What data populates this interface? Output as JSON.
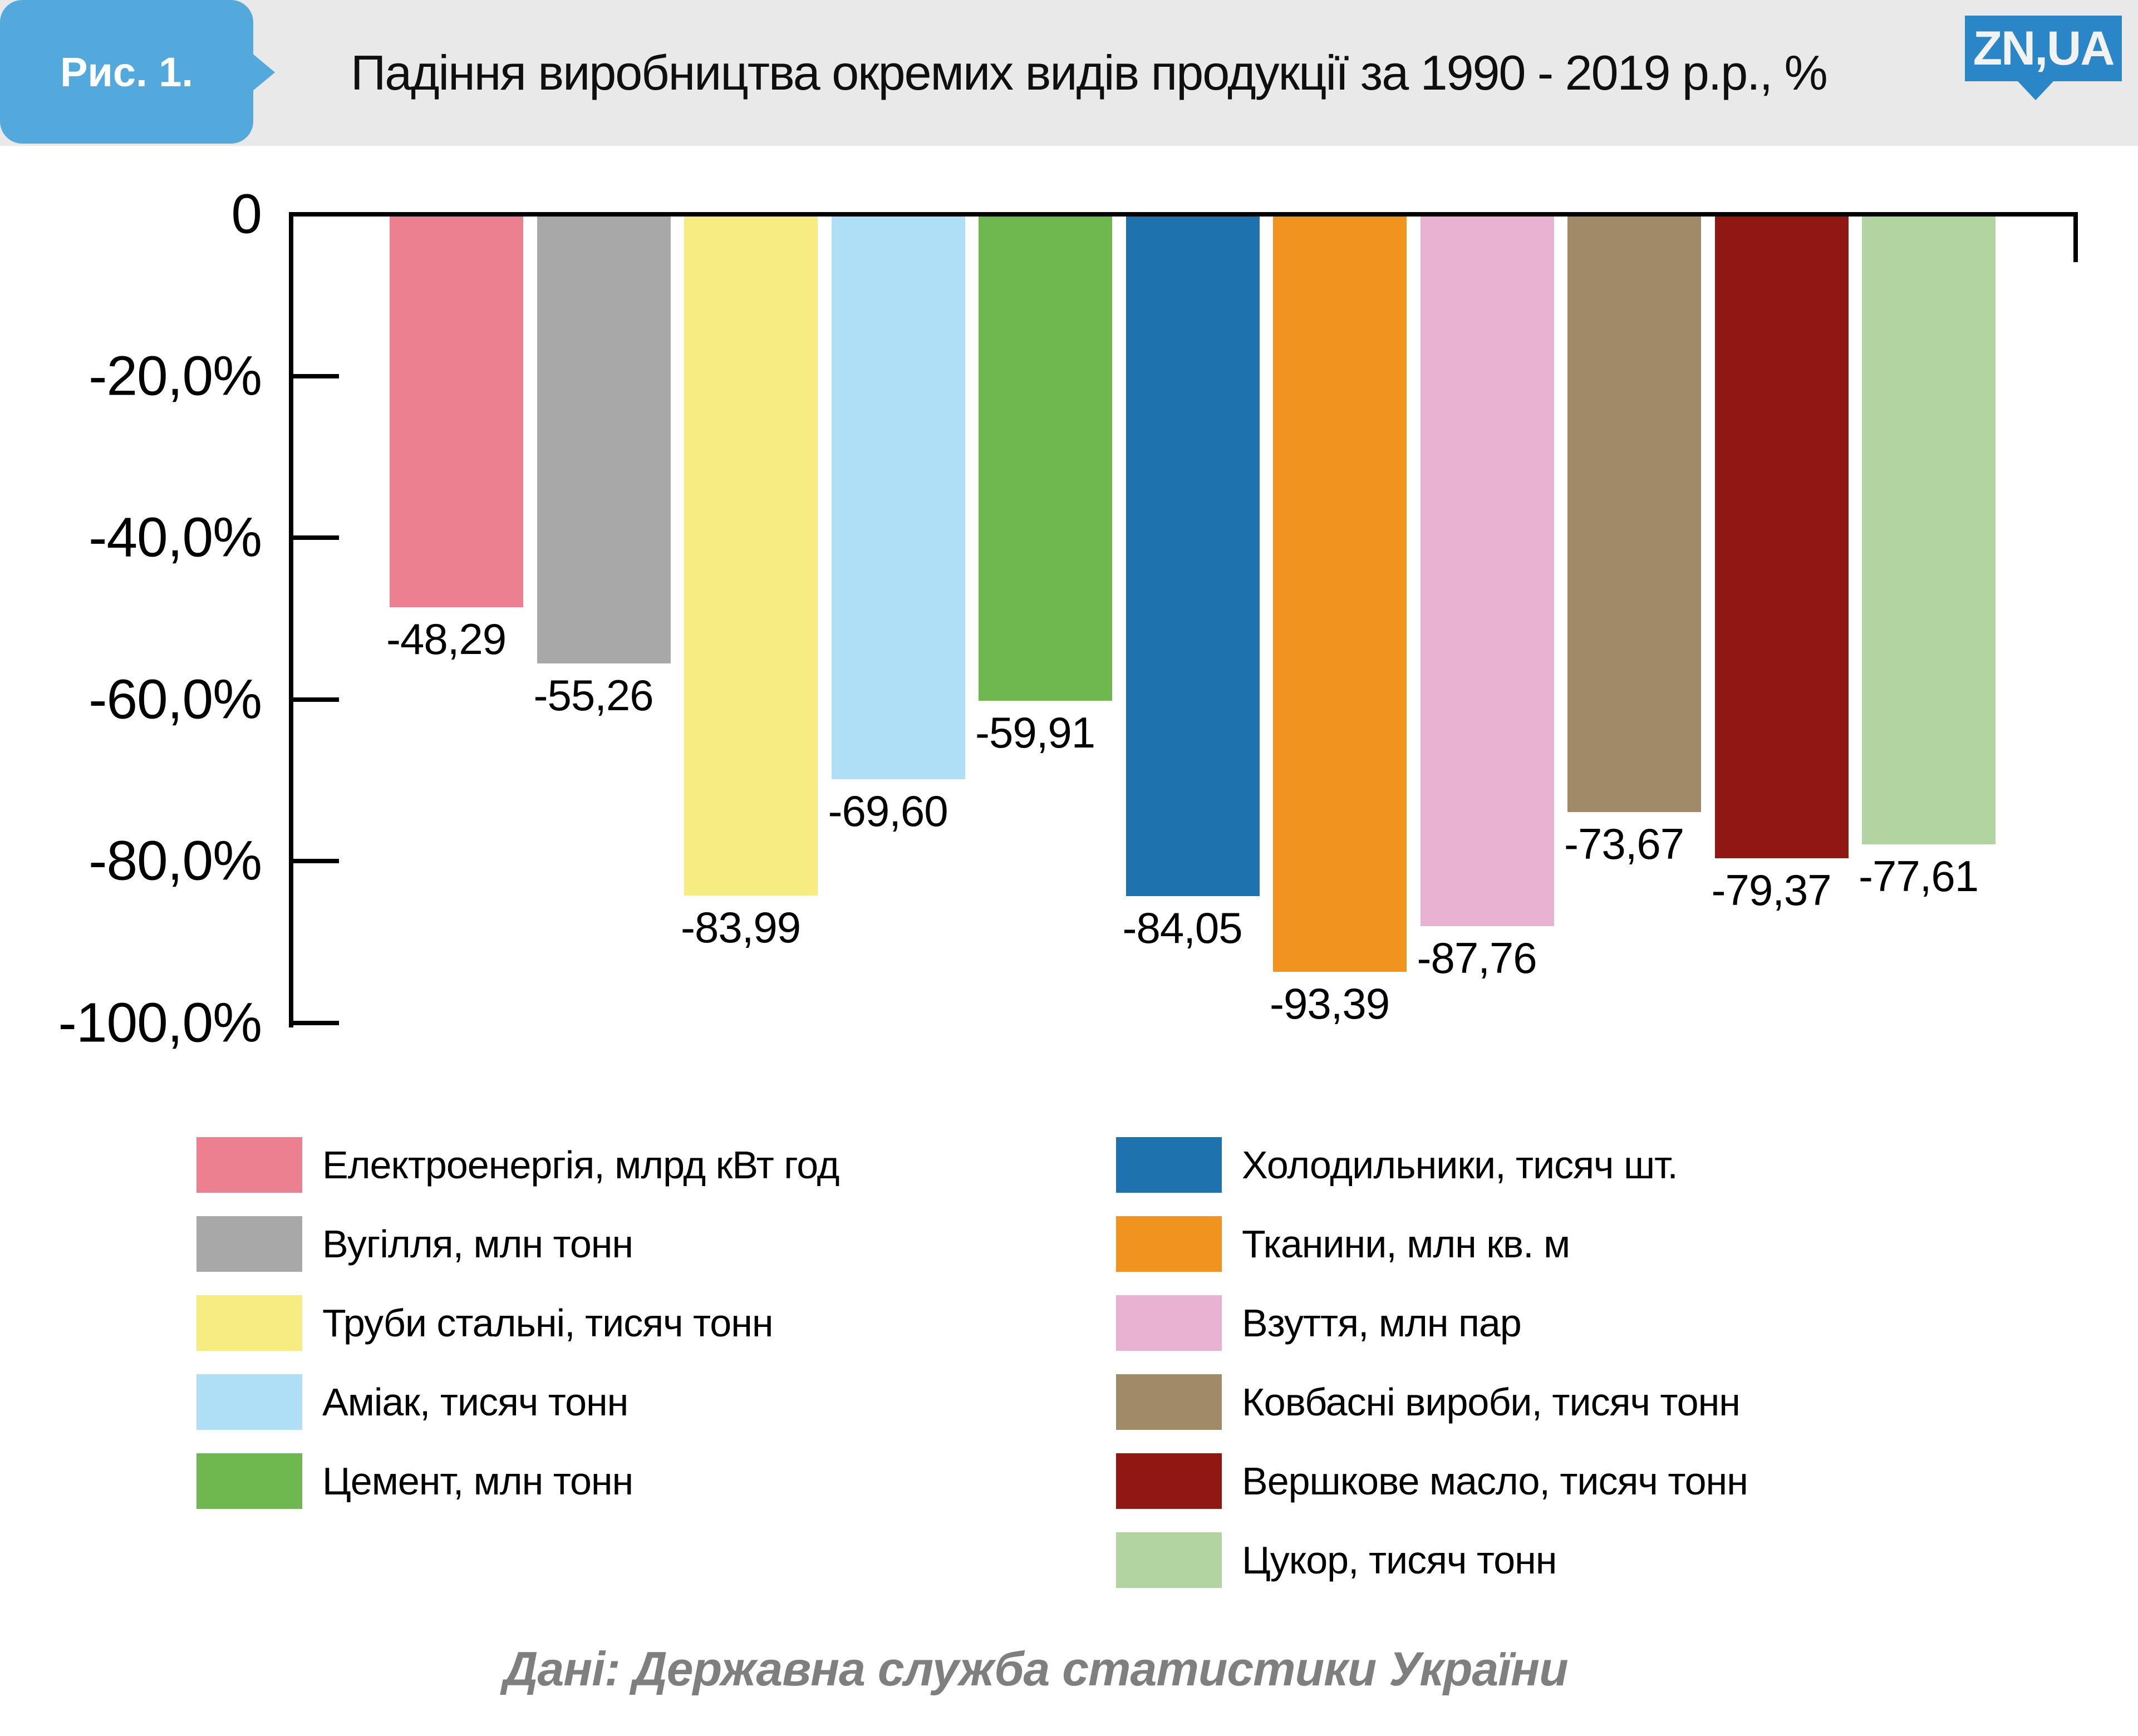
{
  "header": {
    "figure_label": "Рис. 1.",
    "title": "Падіння виробництва окремих видів продукції за 1990 - 2019 р.р., %",
    "logo_text": "ZN,UA",
    "badge_color": "#54a9dc",
    "logo_color": "#2a86c7",
    "background_color": "#e9e9e9"
  },
  "footer": {
    "text": "Дані: Державна служба статистики України",
    "color": "#7f7f7f"
  },
  "chart_data": {
    "type": "bar",
    "title": "Падіння виробництва окремих видів продукції за 1990 - 2019 р.р., %",
    "xlabel": "",
    "ylabel": "",
    "ylim": [
      0,
      -100
    ],
    "grid": false,
    "legend_position": "bottom-two-columns",
    "yticks": [
      {
        "value": 0,
        "label": "0"
      },
      {
        "value": -20,
        "label": "-20,0%"
      },
      {
        "value": -40,
        "label": "-40,0%"
      },
      {
        "value": -60,
        "label": "-60,0%"
      },
      {
        "value": -80,
        "label": "-80,0%"
      },
      {
        "value": -100,
        "label": "-100,0%"
      }
    ],
    "series": [
      {
        "label": "Електроенергія, млрд кВт год",
        "value": -48.29,
        "value_label": "-48,29",
        "color": "#ed8090"
      },
      {
        "label": "Вугілля, млн тонн",
        "value": -55.26,
        "value_label": "-55,26",
        "color": "#a8a8a8"
      },
      {
        "label": "Труби стальні, тисяч тонн",
        "value": -83.99,
        "value_label": "-83,99",
        "color": "#f7ec82"
      },
      {
        "label": "Аміак, тисяч тонн",
        "value": -69.6,
        "value_label": "-69,60",
        "color": "#aedff7"
      },
      {
        "label": "Цемент, млн тонн",
        "value": -59.91,
        "value_label": "-59,91",
        "color": "#6fb84f"
      },
      {
        "label": "Холодильники, тисяч шт.",
        "value": -84.05,
        "value_label": "-84,05",
        "color": "#1e72ae"
      },
      {
        "label": "Тканини, млн кв. м",
        "value": -93.39,
        "value_label": "-93,39",
        "color": "#f0941f"
      },
      {
        "label": "Взуття, млн пар",
        "value": -87.76,
        "value_label": "-87,76",
        "color": "#eab2d2"
      },
      {
        "label": "Ковбасні вироби, тисяч тонн",
        "value": -73.67,
        "value_label": "-73,67",
        "color": "#a18a68"
      },
      {
        "label": "Вершкове масло, тисяч тонн",
        "value": -79.37,
        "value_label": "-79,37",
        "color": "#901712"
      },
      {
        "label": "Цукор, тисяч тонн",
        "value": -77.61,
        "value_label": "-77,61",
        "color": "#b2d4a0"
      }
    ],
    "legend_columns": [
      [
        0,
        1,
        2,
        3,
        4
      ],
      [
        5,
        6,
        7,
        8,
        9,
        10
      ]
    ]
  }
}
